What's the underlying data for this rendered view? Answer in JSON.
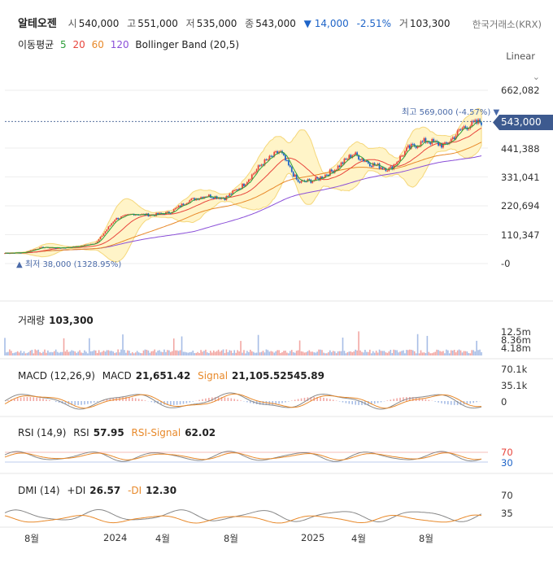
{
  "stock": {
    "name": "알테오젠",
    "open_label": "시",
    "open": "540,000",
    "high_label": "고",
    "high": "551,000",
    "low_label": "저",
    "low": "535,000",
    "close_label": "종",
    "close": "543,000",
    "change_arrow": "▼",
    "change": "14,000",
    "change_pct": "-2.51%",
    "volume_label": "거",
    "volume": "103,300",
    "exchange": "한국거래소(KRX)"
  },
  "indicators": {
    "ma_label": "이동평균",
    "ma_periods": [
      {
        "period": "5",
        "color": "#2e9e3a"
      },
      {
        "period": "20",
        "color": "#e8453c"
      },
      {
        "period": "60",
        "color": "#e8892a"
      },
      {
        "period": "120",
        "color": "#8a4fd8"
      }
    ],
    "bb_label": "Bollinger Band (20,5)"
  },
  "scale": {
    "label": "Linear",
    "chevron_icon": "chevron-down-icon"
  },
  "price_axis": {
    "ticks": [
      "662,082",
      "441,388",
      "331,041",
      "220,694",
      "110,347",
      "-0"
    ],
    "tick_values": [
      662082,
      441388,
      331041,
      220694,
      110347,
      0
    ],
    "current": "543,000",
    "current_value": 543000,
    "badge_color": "#3d5a8f"
  },
  "annotations": {
    "high": "최고 569,000 (-4.57%) ▼",
    "high_value": 569000,
    "low": "▲ 최저 38,000 (1328.95%)",
    "low_value": 38000
  },
  "volume_panel": {
    "title": "거래량",
    "value": "103,300",
    "ticks": [
      "12.5m",
      "8.36m",
      "4.18m"
    ],
    "tick_values": [
      12500000,
      8360000,
      4180000
    ]
  },
  "macd_panel": {
    "title": "MACD (12,26,9)",
    "macd_label": "MACD",
    "macd_value": "21,651.42",
    "signal_label": "Signal",
    "signal_value": "21,105.52545.89",
    "ticks": [
      "70.1k",
      "35.1k",
      "0"
    ],
    "tick_values": [
      70100,
      35100,
      0
    ],
    "colors": {
      "macd": "#888888",
      "signal": "#e8892a"
    }
  },
  "rsi_panel": {
    "title": "RSI (14,9)",
    "rsi_label": "RSI",
    "rsi_value": "57.95",
    "signal_label": "RSI-Signal",
    "signal_value": "62.02",
    "ticks": [
      "70",
      "30"
    ],
    "tick_values": [
      70,
      30
    ],
    "colors": {
      "upper": "#e8453c",
      "lower": "#1e64c8"
    }
  },
  "dmi_panel": {
    "title": "DMI (14)",
    "pdi_label": "+DI",
    "pdi_value": "26.57",
    "mdi_label": "-DI",
    "mdi_value": "12.30",
    "ticks": [
      "70",
      "35"
    ],
    "tick_values": [
      70,
      35
    ]
  },
  "x_axis": {
    "labels": [
      "8월",
      "2024",
      "4월",
      "8월",
      "2025",
      "4월",
      "8월"
    ]
  },
  "chart_data": {
    "type": "line",
    "x": [
      "2023-08",
      "2023-09",
      "2023-10",
      "2023-11",
      "2023-12",
      "2024-01",
      "2024-02",
      "2024-03",
      "2024-04",
      "2024-05",
      "2024-06",
      "2024-07",
      "2024-08",
      "2024-09",
      "2024-10",
      "2024-11",
      "2024-12",
      "2025-01",
      "2025-02",
      "2025-03",
      "2025-04",
      "2025-05",
      "2025-06",
      "2025-07",
      "2025-08",
      "2025-09",
      "2025-10"
    ],
    "series": [
      {
        "name": "종",
        "values": [
          40000,
          42000,
          62000,
          60000,
          65000,
          80000,
          170000,
          190000,
          185000,
          195000,
          240000,
          260000,
          250000,
          300000,
          380000,
          430000,
          310000,
          320000,
          360000,
          420000,
          380000,
          360000,
          440000,
          470000,
          450000,
          520000,
          543000
        ]
      }
    ],
    "ylim": [
      0,
      700000
    ]
  }
}
